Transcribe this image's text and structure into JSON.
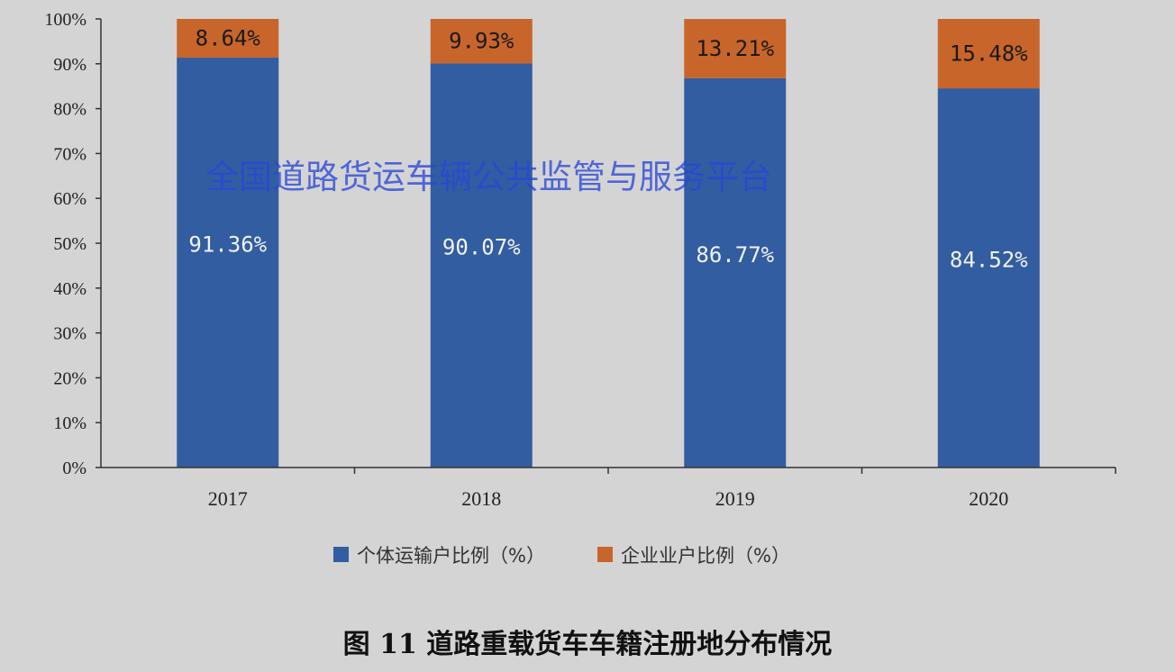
{
  "chart_data": {
    "type": "bar",
    "stacked": true,
    "categories": [
      "2017",
      "2018",
      "2019",
      "2020"
    ],
    "series": [
      {
        "name": "个体运输户比例（%）",
        "values": [
          91.36,
          90.07,
          86.77,
          84.52
        ],
        "labels": [
          "91.36%",
          "90.07%",
          "86.77%",
          "84.52%"
        ],
        "color": "#325da0"
      },
      {
        "name": "企业业户比例（%）",
        "values": [
          8.64,
          9.93,
          13.21,
          15.48
        ],
        "labels": [
          "8.64%",
          "9.93%",
          "13.21%",
          "15.48%"
        ],
        "color": "#c8652b"
      }
    ],
    "yticks": [
      "0%",
      "10%",
      "20%",
      "30%",
      "40%",
      "50%",
      "60%",
      "70%",
      "80%",
      "90%",
      "100%"
    ],
    "ylim": [
      0,
      100
    ],
    "grid": false,
    "legend": "bottom",
    "title": "",
    "xlabel": "",
    "ylabel": ""
  },
  "watermark": "全国道路货运车辆公共监管与服务平台",
  "caption": "图 11 道路重载货车车籍注册地分布情况",
  "colors": {
    "background": "#d4d4d4",
    "individual": "#325da0",
    "enterprise": "#c8652b",
    "watermark": "#2846d7"
  }
}
